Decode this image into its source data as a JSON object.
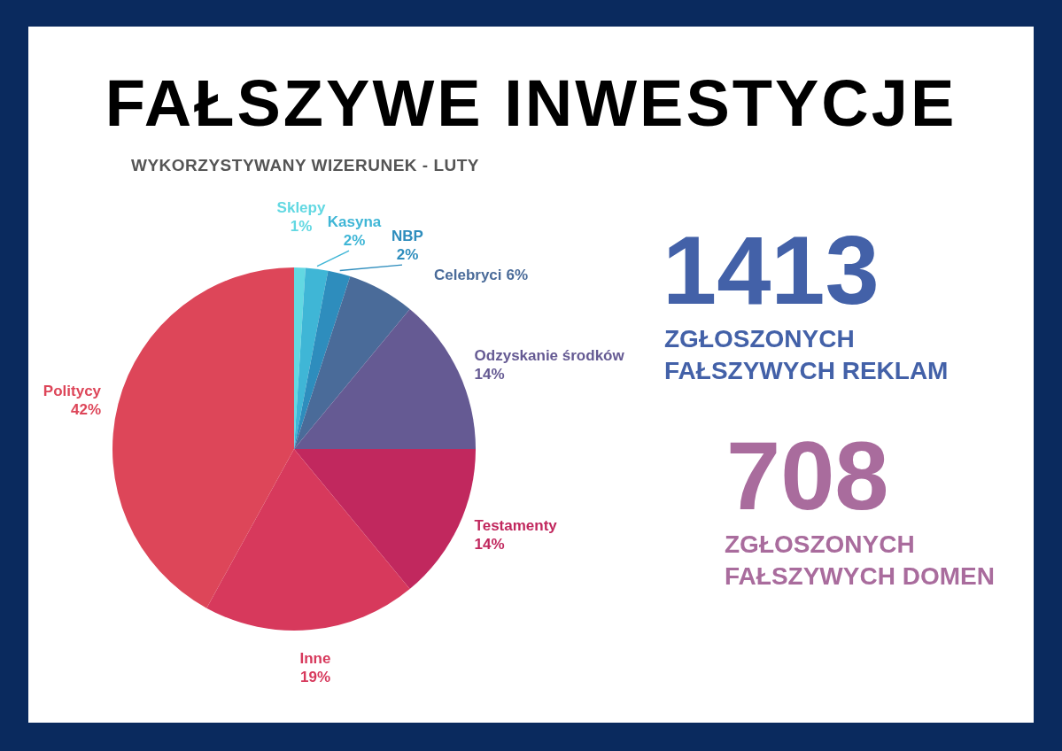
{
  "chart_data": [
    {
      "type": "pie",
      "title": "FAŁSZYWE INWESTYCJE",
      "subtitle": "WYKORZYSTYWANY WIZERUNEK - LUTY",
      "categories": [
        "Sklepy",
        "Kasyna",
        "NBP",
        "Celebryci",
        "Odzyskanie środków",
        "Testamenty",
        "Inne",
        "Politycy"
      ],
      "values": [
        1,
        2,
        2,
        6,
        14,
        14,
        19,
        42
      ],
      "value_labels": [
        "1%",
        "2%",
        "2%",
        "6%",
        "14%",
        "14%",
        "19%",
        "42%"
      ],
      "colors": [
        "#62d8e2",
        "#3fb6d6",
        "#2e8dbd",
        "#4a6b99",
        "#655a93",
        "#c1285e",
        "#d7395c",
        "#dd4659"
      ]
    },
    {
      "type": "other",
      "annotations": [
        "1413",
        "ZGŁOSZONYCH FAŁSZYWYCH REKLAM",
        "708",
        "ZGŁOSZONYCH FAŁSZYWYCH DOMEN"
      ],
      "colors": [
        "#4361a8",
        "#4361a8",
        "#a96c9d",
        "#a96c9d"
      ]
    }
  ]
}
